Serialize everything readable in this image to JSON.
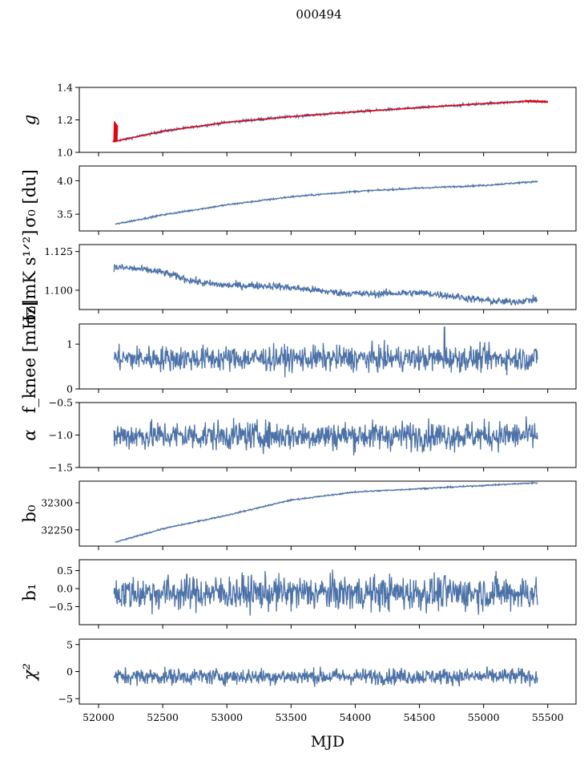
{
  "figure": {
    "title": "000494",
    "xlabel": "MJD"
  },
  "colors": {
    "series": "#4c72a8",
    "fit": "#e8000b",
    "axis": "#000000"
  },
  "chart_data": {
    "type": "line",
    "shared_x": {
      "label": "MJD",
      "range": [
        51850,
        55720
      ],
      "ticks": [
        52000,
        52500,
        53000,
        53500,
        54000,
        54500,
        55000,
        55500
      ],
      "tick_labels": [
        "52000",
        "52500",
        "53000",
        "53500",
        "54000",
        "54500",
        "55000",
        "55500"
      ]
    },
    "panels": [
      {
        "name": "g",
        "ylabel": "g",
        "ylim": [
          1.0,
          1.4
        ],
        "yticks": [
          1.0,
          1.2,
          1.4
        ],
        "ytick_labels": [
          "1.0",
          "1.2",
          "1.4"
        ],
        "x_range": [
          52110,
          55500
        ],
        "noise": 0.004,
        "trend_x": [
          52110,
          52200,
          52500,
          53000,
          53500,
          54000,
          54500,
          55000,
          55350,
          55500
        ],
        "trend_y": [
          1.065,
          1.08,
          1.13,
          1.185,
          1.22,
          1.25,
          1.275,
          1.3,
          1.315,
          1.312
        ],
        "has_red_overlay": true,
        "spike_y": [
          1.07,
          1.195
        ]
      },
      {
        "name": "sigma0_du",
        "ylabel": "σ₀ [du]",
        "ylim": [
          3.25,
          4.22
        ],
        "yticks": [
          3.5,
          4.0
        ],
        "ytick_labels": [
          "3.5",
          "4.0"
        ],
        "x_range": [
          52130,
          55420
        ],
        "noise": 0.006,
        "trend_x": [
          52130,
          52500,
          53000,
          53500,
          54000,
          54500,
          55000,
          55420
        ],
        "trend_y": [
          3.35,
          3.49,
          3.64,
          3.76,
          3.84,
          3.89,
          3.93,
          3.99
        ]
      },
      {
        "name": "sigma0_mk",
        "ylabel": "σ₀[mK s¹ᐟ²]",
        "ylim": [
          1.0875,
          1.1295
        ],
        "yticks": [
          1.1,
          1.125
        ],
        "ytick_labels": [
          "1.100",
          "1.125"
        ],
        "x_range": [
          52120,
          55420
        ],
        "noise": 0.0012,
        "trend_x": [
          52120,
          52500,
          52800,
          53000,
          53500,
          54000,
          54500,
          55000,
          55200,
          55420
        ],
        "trend_y": [
          1.114,
          1.111,
          1.106,
          1.104,
          1.1005,
          1.099,
          1.097,
          1.0945,
          1.0935,
          1.094
        ]
      },
      {
        "name": "fknee",
        "ylabel": "f_knee [mHz]",
        "ylim": [
          0,
          1.45
        ],
        "yticks": [
          0,
          1
        ],
        "ytick_labels": [
          "0",
          "1"
        ],
        "x_range": [
          52120,
          55420
        ],
        "noise": 0.14,
        "mean": 0.68,
        "spike_x": 54695,
        "spike_val": 1.38
      },
      {
        "name": "alpha",
        "ylabel": "α",
        "ylim": [
          -1.5,
          -0.5
        ],
        "yticks": [
          -1.5,
          -1.0,
          -0.5
        ],
        "ytick_labels": [
          "−1.5",
          "−1.0",
          "−0.5"
        ],
        "x_range": [
          52120,
          55420
        ],
        "noise": 0.11,
        "mean": -1.01
      },
      {
        "name": "b0",
        "ylabel": "b₀",
        "ylim": [
          32220,
          32340
        ],
        "yticks": [
          32250,
          32300
        ],
        "ytick_labels": [
          "32250",
          "32300"
        ],
        "x_range": [
          52130,
          55420
        ],
        "noise": 0.6,
        "trend_x": [
          52130,
          52500,
          53000,
          53500,
          54000,
          54500,
          55000,
          55420
        ],
        "trend_y": [
          32227,
          32252,
          32277,
          32305,
          32320,
          32326,
          32332,
          32337
        ]
      },
      {
        "name": "b1",
        "ylabel": "b₁",
        "ylim": [
          -1.0,
          0.8
        ],
        "yticks": [
          -0.5,
          0.0,
          0.5
        ],
        "ytick_labels": [
          "−0.5",
          "0.0",
          "0.5"
        ],
        "x_range": [
          52120,
          55420
        ],
        "noise": 0.24,
        "mean": -0.12
      },
      {
        "name": "chi2",
        "ylabel": "χ²",
        "ylim": [
          -6,
          6
        ],
        "yticks": [
          -5,
          0,
          5
        ],
        "ytick_labels": [
          "−5",
          "0",
          "5"
        ],
        "x_range": [
          52120,
          55420
        ],
        "noise": 0.75,
        "mean": -0.9
      }
    ]
  }
}
